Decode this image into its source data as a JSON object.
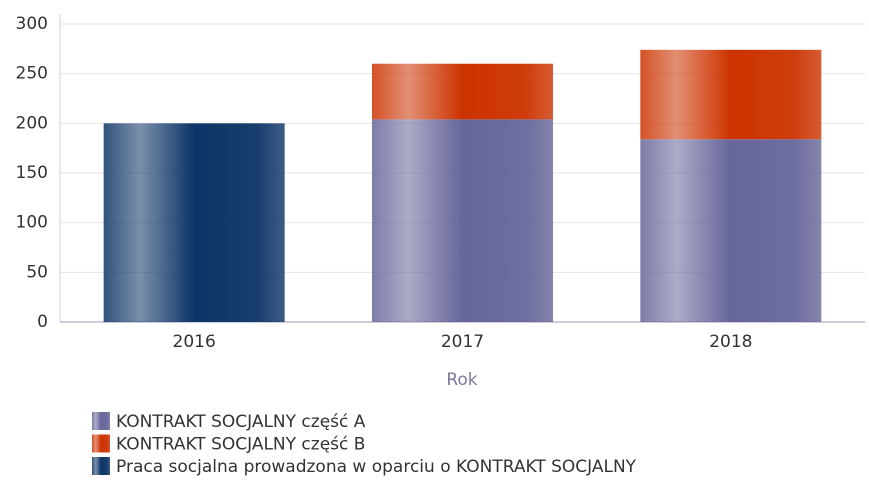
{
  "chart_data": {
    "type": "stacked_bar",
    "categories": [
      "2016",
      "2017",
      "2018"
    ],
    "x_label": "Rok",
    "series": [
      {
        "name": "KONTRAKT SOCJALNY część A",
        "color": "#66669a",
        "values": [
          null,
          204,
          184
        ]
      },
      {
        "name": "KONTRAKT SOCJALNY część B",
        "color": "#cc3300",
        "values": [
          null,
          56,
          90
        ]
      },
      {
        "name": "Praca socjalna prowadzona w oparciu o KONTRAKT SOCJALNY",
        "color": "#0d3466",
        "values": [
          200,
          null,
          null
        ]
      }
    ],
    "ylim": [
      0,
      300
    ],
    "yticks": [
      0,
      50,
      100,
      150,
      200,
      250,
      300
    ],
    "grid": true,
    "legend": "bottom"
  }
}
